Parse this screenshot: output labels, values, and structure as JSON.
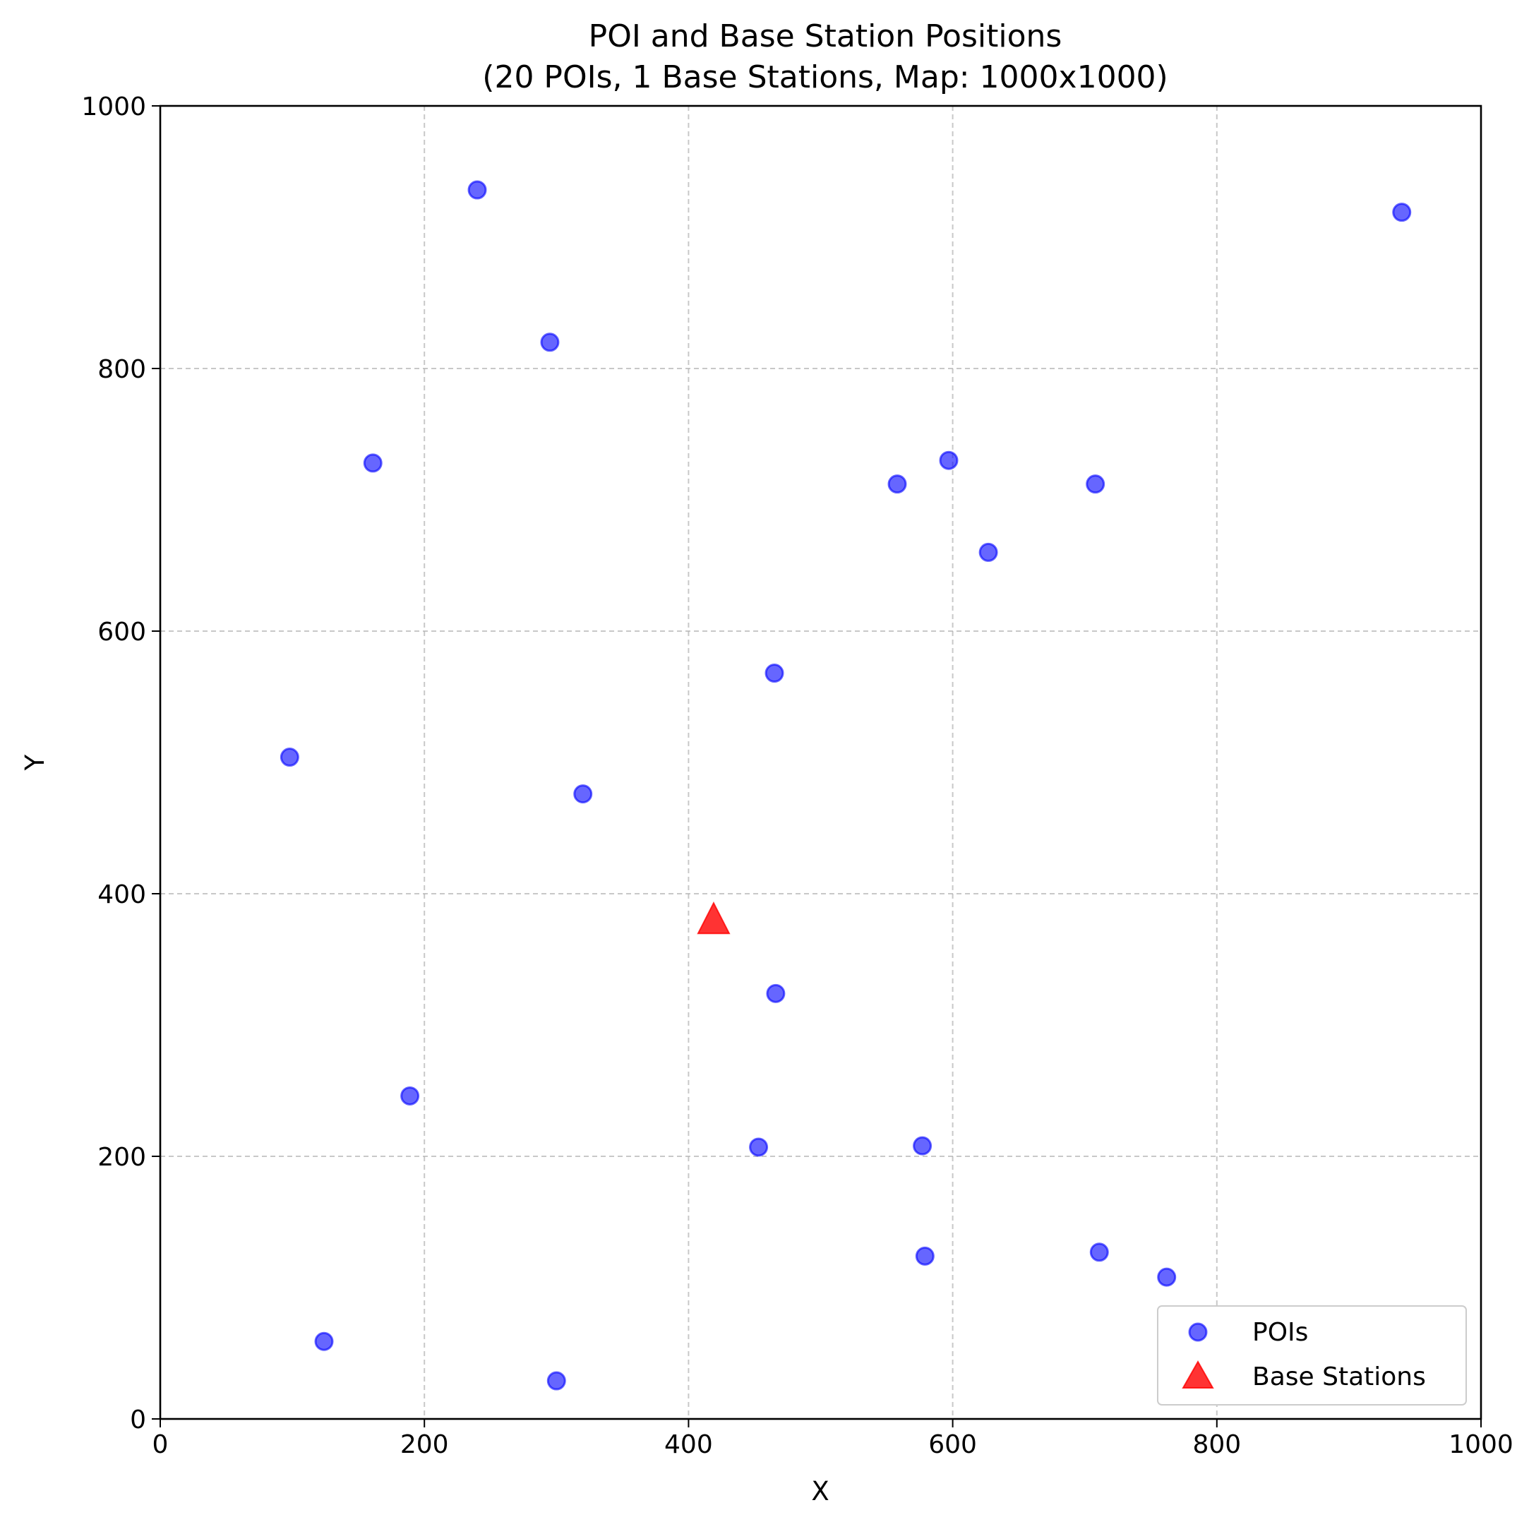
{
  "chart_data": {
    "type": "scatter",
    "title": "POI and Base Station Positions",
    "subtitle": "(20 POIs, 1 Base Stations, Map: 1000x1000)",
    "xlabel": "X",
    "ylabel": "Y",
    "xlim": [
      0,
      1000
    ],
    "ylim": [
      0,
      1000
    ],
    "xticks": [
      "0",
      "200",
      "400",
      "600",
      "800",
      "1000"
    ],
    "yticks": [
      "0",
      "200",
      "400",
      "600",
      "800",
      "1000"
    ],
    "grid": true,
    "legend_position": "lower-right",
    "series": [
      {
        "name": "POIs",
        "marker": "circle",
        "color": "#0000ff",
        "points": [
          [
            240,
            936
          ],
          [
            295,
            820
          ],
          [
            940,
            919
          ],
          [
            161,
            728
          ],
          [
            558,
            712
          ],
          [
            597,
            730
          ],
          [
            708,
            712
          ],
          [
            627,
            660
          ],
          [
            465,
            568
          ],
          [
            98,
            504
          ],
          [
            320,
            476
          ],
          [
            466,
            324
          ],
          [
            189,
            246
          ],
          [
            453,
            207
          ],
          [
            577,
            208
          ],
          [
            579,
            124
          ],
          [
            711,
            127
          ],
          [
            762,
            108
          ],
          [
            124,
            59
          ],
          [
            300,
            29
          ]
        ]
      },
      {
        "name": "Base Stations",
        "marker": "triangle",
        "color": "#ff0000",
        "points": [
          [
            419,
            380
          ]
        ]
      }
    ]
  }
}
